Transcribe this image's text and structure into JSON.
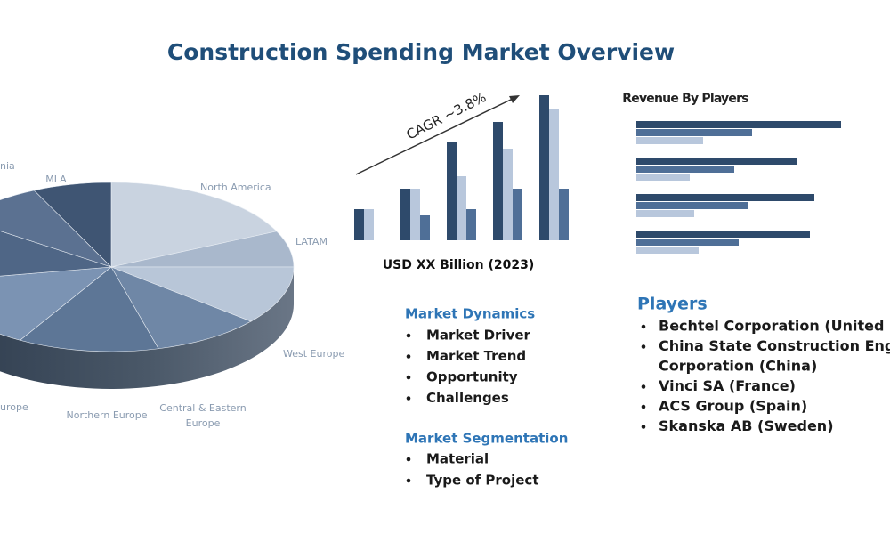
{
  "header": {
    "title": "Construction Spending Market Overview"
  },
  "pie": {
    "labels": [
      "North America",
      "LATAM",
      "West Europe",
      "Central & Eastern",
      "Europe",
      "Northern Europe",
      "urope",
      "nia",
      "MLA"
    ]
  },
  "growth_chart": {
    "annotation": "CAGR ~3.8%",
    "caption": "USD XX Billion (2023)"
  },
  "revenue_chart": {
    "title": "Revenue By Players"
  },
  "market_dynamics": {
    "heading": "Market Dynamics",
    "items": [
      "Market Driver",
      "Market Trend",
      "Opportunity",
      "Challenges"
    ]
  },
  "market_segmentation": {
    "heading": "Market Segmentation",
    "items": [
      "Material",
      "Type of Project"
    ]
  },
  "players": {
    "heading": "Players",
    "items": [
      [
        "Bechtel Corporation (United S"
      ],
      [
        "China State Construction Eng",
        "Corporation (China)"
      ],
      [
        "Vinci SA (France)"
      ],
      [
        "ACS Group (Spain)"
      ],
      [
        "Skanska AB (Sweden)"
      ]
    ]
  }
}
